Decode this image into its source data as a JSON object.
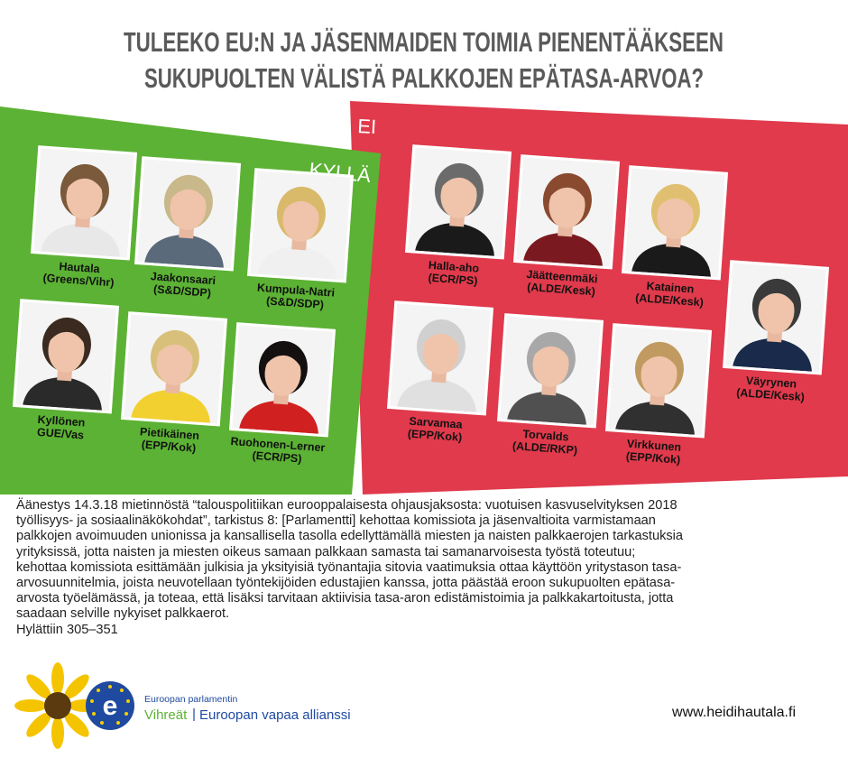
{
  "header": {
    "title_lines": [
      "TULEEKO EU:N JA JÄSENMAIDEN TOIMIA PIENENTÄÄKSEEN",
      "SUKUPUOLTEN VÄLISTÄ PALKKOJEN EPÄTASA-ARVOA?"
    ]
  },
  "panels": {
    "yes": {
      "label": "KYLLÄ",
      "people": [
        {
          "name": "Hautala",
          "group": "(Greens/Vihr)"
        },
        {
          "name": "Jaakonsaari",
          "group": "(S&D/SDP)"
        },
        {
          "name": "Kumpula-Natri",
          "group": "(S&D/SDP)"
        },
        {
          "name": "Kyllönen",
          "group": "GUE/Vas"
        },
        {
          "name": "Pietikäinen",
          "group": "(EPP/Kok)"
        },
        {
          "name": "Ruohonen-Lerner",
          "group": "(ECR/PS)"
        }
      ]
    },
    "no": {
      "label": "EI",
      "people": [
        {
          "name": "Halla-aho",
          "group": "(ECR/PS)"
        },
        {
          "name": "Jäätteenmäki",
          "group": "(ALDE/Kesk)"
        },
        {
          "name": "Katainen",
          "group": "(ALDE/Kesk)"
        },
        {
          "name": "Väyrynen",
          "group": "(ALDE/Kesk)"
        },
        {
          "name": "Sarvamaa",
          "group": "(EPP/Kok)"
        },
        {
          "name": "Torvalds",
          "group": "(ALDE/RKP)"
        },
        {
          "name": "Virkkunen",
          "group": "(EPP/Kok)"
        }
      ]
    }
  },
  "description": {
    "lines": [
      "Äänestys 14.3.18 mietinnöstä “talouspolitiikan eurooppalaisesta ohjausjaksosta: vuotuisen kasvuselvityksen 2018",
      "työllisyys- ja sosiaalinäkökohdat”, tarkistus 8: [Parlamentti] kehottaa komissiota ja jäsenvaltioita varmistamaan",
      "palkkojen avoimuuden unionissa ja kansallisella tasolla edellyttämällä miesten ja naisten palkkaerojen tarkastuksia",
      "yrityksissä, jotta naisten ja miesten oikeus samaan palkkaan samasta tai samanarvoisesta työstä toteutuu;",
      "kehottaa komissiota esittämään julkisia ja yksityisiä työnantajia sitovia vaatimuksia ottaa käyttöön yritystason tasa-",
      "arvosuunnitelmia, joista neuvotellaan työntekijöiden edustajien kanssa, jotta päästää eroon sukupuolten epätasa-",
      "arvosta työelämässä, ja toteaa, että lisäksi tarvitaan aktiivisia tasa-aron edistämistoimia ja palkkakartoitusta, jotta",
      "saadaan selville nykyiset palkkaerot.",
      "Hylättiin 305–351"
    ]
  },
  "footer": {
    "org_line": "Euroopan parlamentin",
    "party_green": "Vihreät",
    "party_blue": "Euroopan vapaa allianssi",
    "url": "www.heidihautala.fi"
  }
}
